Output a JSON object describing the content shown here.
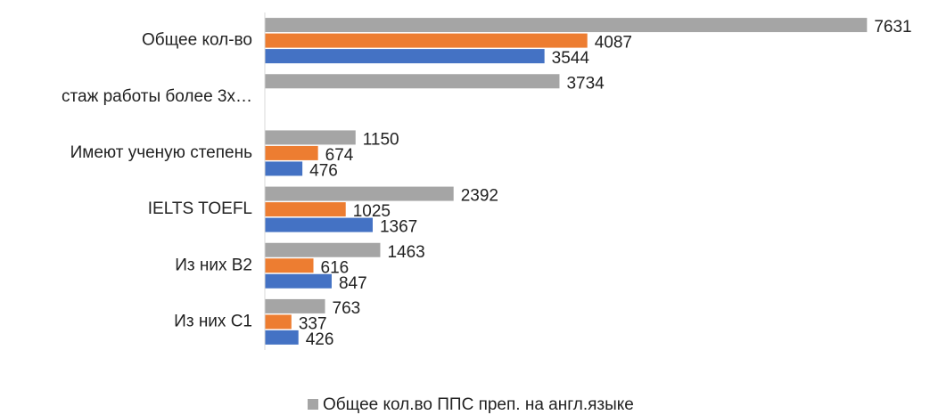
{
  "chart_data": {
    "type": "bar",
    "orientation": "horizontal",
    "categories": [
      "Общее кол-во",
      "стаж работы более 3х…",
      "Имеют ученую степень",
      "IELTS TOEFL",
      "Из них B2",
      "Из них C1"
    ],
    "series": [
      {
        "name": "Общее кол.во ППС преп. на англ.языке",
        "color": "#a5a5a5",
        "values": [
          7631,
          3734,
          1150,
          2392,
          1463,
          763
        ]
      },
      {
        "color": "#ed7d31",
        "values": [
          4087,
          null,
          674,
          1025,
          616,
          337
        ]
      },
      {
        "color": "#4472c4",
        "values": [
          3544,
          null,
          476,
          1367,
          847,
          426
        ]
      }
    ],
    "xlim": [
      0,
      8000
    ],
    "legend": "bottom"
  }
}
